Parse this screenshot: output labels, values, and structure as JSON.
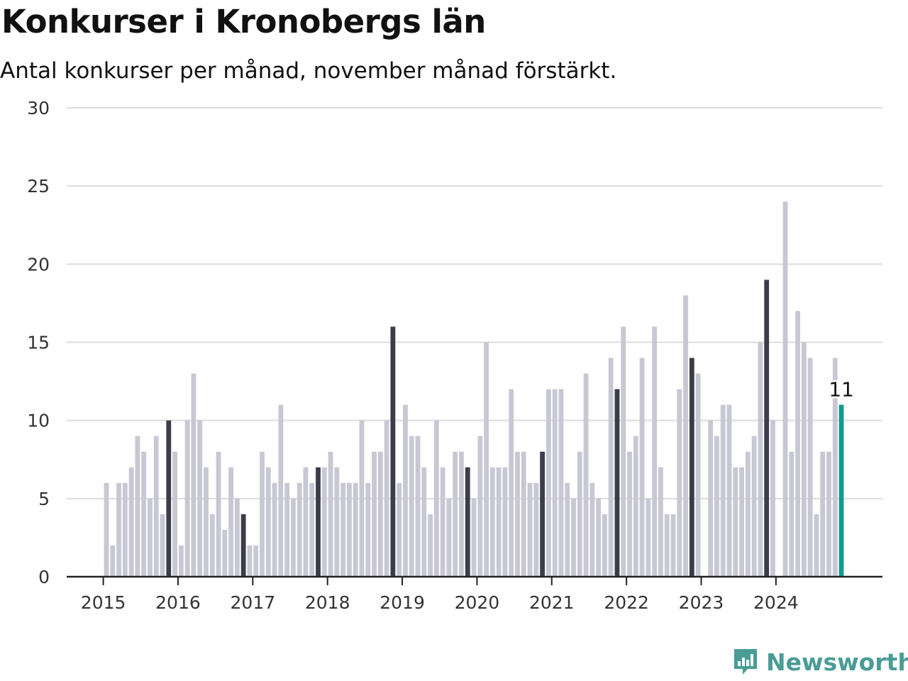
{
  "header": {
    "title": "Konkurser i Kronobergs län",
    "subtitle": "Antal konkurser per månad, november månad förstärkt."
  },
  "brand": {
    "name": "Newsworthy"
  },
  "colors": {
    "regular": "#c8c7d4",
    "november": "#3d3c4b",
    "latest": "#149a8e",
    "grid": "#dcdcdc",
    "axis": "#222222",
    "brand": "#4a9c96"
  },
  "chart_data": {
    "type": "bar",
    "title": "Konkurser i Kronobergs län",
    "subtitle": "Antal konkurser per månad, november månad förstärkt.",
    "xlabel": "",
    "ylabel": "",
    "ylim": [
      0,
      30
    ],
    "yticks": [
      0,
      5,
      10,
      15,
      20,
      25,
      30
    ],
    "xticks": [
      "2015",
      "2016",
      "2017",
      "2018",
      "2019",
      "2020",
      "2021",
      "2022",
      "2023",
      "2024"
    ],
    "start": "2015-01",
    "end": "2024-11",
    "highlight_month": "november",
    "grid": true,
    "values": [
      6,
      2,
      6,
      6,
      7,
      9,
      8,
      5,
      9,
      4,
      10,
      8,
      2,
      10,
      13,
      10,
      7,
      4,
      8,
      3,
      7,
      5,
      4,
      2,
      2,
      8,
      7,
      6,
      11,
      6,
      5,
      6,
      7,
      6,
      7,
      7,
      8,
      7,
      6,
      6,
      6,
      10,
      6,
      8,
      8,
      10,
      16,
      6,
      11,
      9,
      9,
      7,
      4,
      10,
      7,
      5,
      8,
      8,
      7,
      5,
      9,
      15,
      7,
      7,
      7,
      12,
      8,
      8,
      6,
      6,
      8,
      12,
      12,
      12,
      6,
      5,
      8,
      13,
      6,
      5,
      4,
      14,
      12,
      16,
      8,
      9,
      14,
      5,
      16,
      7,
      4,
      4,
      12,
      18,
      14,
      13,
      0,
      10,
      9,
      11,
      11,
      7,
      7,
      8,
      9,
      15,
      19,
      10,
      0,
      24,
      8,
      17,
      15,
      14,
      4,
      8,
      8,
      14,
      11
    ],
    "last_value_label": "11"
  }
}
